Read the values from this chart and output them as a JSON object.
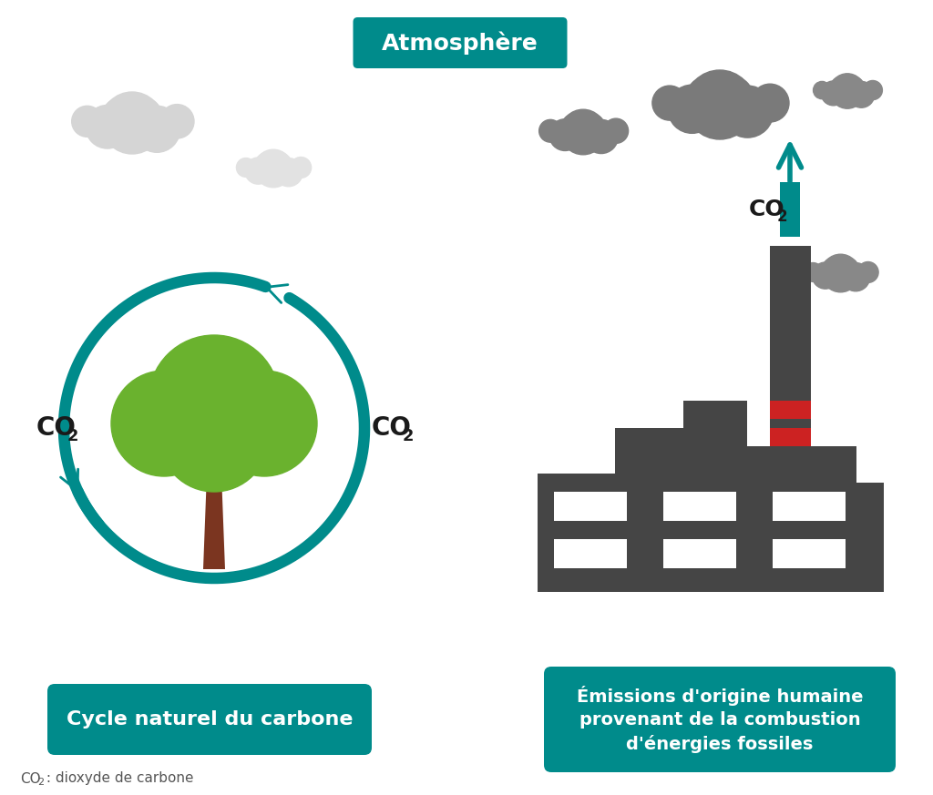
{
  "bg_color": "#ffffff",
  "teal": "#008B8B",
  "factory_color": "#454545",
  "tree_green": "#6ab22e",
  "tree_brown": "#7b3520",
  "red_stripe": "#cc2222",
  "light_cloud": "#d5d5d5",
  "dark_cloud": "#7a7a7a",
  "atmosphere_label": "Atmosphère",
  "cycle_label": "Cycle naturel du carbone",
  "emissions_line1": "Émissions d'origine humaine",
  "emissions_line2": "provenant de la combustion",
  "emissions_line3": "d'énergies fossiles",
  "footnote_co2": "CO",
  "footnote_rest": " : dioxyde de carbone"
}
